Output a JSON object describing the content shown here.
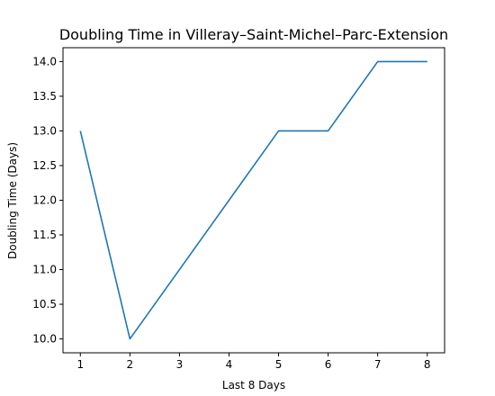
{
  "chart_data": {
    "type": "line",
    "title": "Doubling Time in  Villeray–Saint-Michel–Parc-Extension",
    "xlabel": "Last 8 Days",
    "ylabel": "Doubling Time (Days)",
    "x": [
      1,
      2,
      3,
      4,
      5,
      6,
      7,
      8
    ],
    "series": [
      {
        "values": [
          13.0,
          10.0,
          11.0,
          12.0,
          13.0,
          13.0,
          14.0,
          14.0
        ],
        "color": "#1f77b4"
      }
    ],
    "xlim": [
      0.65,
      8.35
    ],
    "ylim": [
      9.8,
      14.2
    ],
    "xticks": [
      1,
      2,
      3,
      4,
      5,
      6,
      7,
      8
    ],
    "yticks": [
      10.0,
      10.5,
      11.0,
      11.5,
      12.0,
      12.5,
      13.0,
      13.5,
      14.0
    ],
    "grid": false,
    "legend": false
  }
}
